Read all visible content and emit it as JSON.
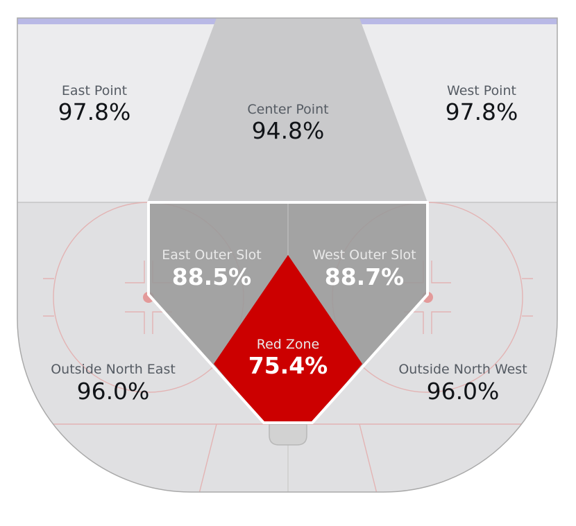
{
  "zones": {
    "east_point": {
      "label": "East Point",
      "value": "97.8%"
    },
    "center_point": {
      "label": "Center Point",
      "value": "94.8%"
    },
    "west_point": {
      "label": "West Point",
      "value": "97.8%"
    },
    "east_outer_slot": {
      "label": "East Outer Slot",
      "value": "88.5%"
    },
    "west_outer_slot": {
      "label": "West Outer Slot",
      "value": "88.7%"
    },
    "red_zone": {
      "label": "Red Zone",
      "value": "75.4%"
    },
    "outside_north_east": {
      "label": "Outside North East",
      "value": "96.0%"
    },
    "outside_north_west": {
      "label": "Outside North West",
      "value": "96.0%"
    }
  },
  "colors": {
    "red_zone": "#cc0000",
    "slot": "#9a9a9a",
    "point_area": "#ececee",
    "lower_area": "#e0e0e2",
    "center_lane": "#c8c8ca",
    "blue_line": "#b9b9e6",
    "rink_lines": "#e3a8a8"
  }
}
